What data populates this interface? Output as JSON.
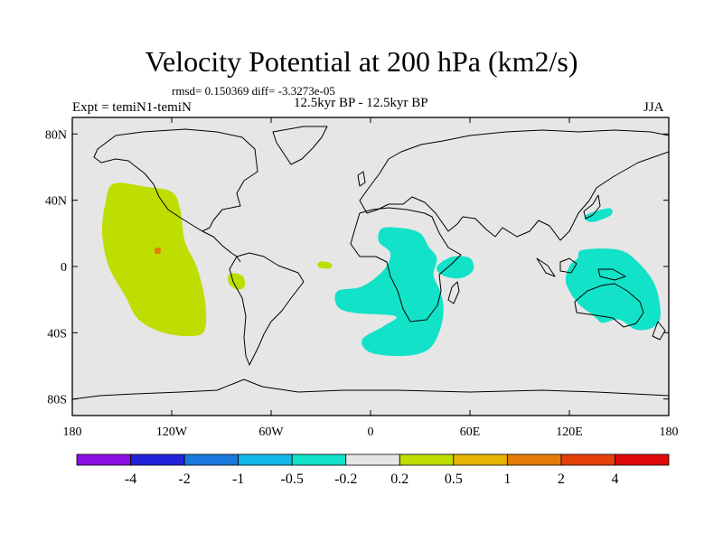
{
  "title": "Velocity Potential at 200 hPa (km2/s)",
  "stats_line": "rmsd= 0.150369 diff= -3.3273e-05",
  "left_label": "Expt = temiN1-temiN",
  "center_label": "12.5kyr BP - 12.5kyr BP",
  "right_label": "JJA",
  "lat_ticks": [
    {
      "value": 80,
      "label": "80N"
    },
    {
      "value": 40,
      "label": "40N"
    },
    {
      "value": 0,
      "label": "0"
    },
    {
      "value": -40,
      "label": "40S"
    },
    {
      "value": -80,
      "label": "80S"
    }
  ],
  "lon_ticks": [
    {
      "value": -180,
      "label": "180"
    },
    {
      "value": -120,
      "label": "120W"
    },
    {
      "value": -60,
      "label": "60W"
    },
    {
      "value": 0,
      "label": "0"
    },
    {
      "value": 60,
      "label": "60E"
    },
    {
      "value": 120,
      "label": "120E"
    },
    {
      "value": 180,
      "label": "180"
    }
  ],
  "map_extent": {
    "lon": [
      -180,
      180
    ],
    "lat": [
      -90,
      90
    ]
  },
  "colorbar": {
    "colors": [
      "#8a0fe0",
      "#2222d8",
      "#1978dc",
      "#12b8e6",
      "#11e2c8",
      "#e6e6e6",
      "#bedd00",
      "#e6b400",
      "#e47c0a",
      "#e6400a",
      "#e00a0a"
    ],
    "labels": [
      "-4",
      "-2",
      "-1",
      "-0.5",
      "-0.2",
      "0.2",
      "0.5",
      "1",
      "2",
      "4"
    ]
  },
  "colors": {
    "background": "#e6e6e6",
    "positive": "#bedd00",
    "negative": "#11e2c8",
    "peak": "#e47c0a",
    "coast": "#000000"
  },
  "chart_data": {
    "type": "heatmap",
    "title": "Velocity Potential at 200 hPa (km2/s)",
    "units": "km2/s",
    "field": "velocity potential difference at 200 hPa",
    "season": "JJA",
    "levels": [
      -4,
      -2,
      -1,
      -0.5,
      -0.2,
      0.2,
      0.5,
      1,
      2,
      4
    ],
    "regions": [
      {
        "name": "eastern-pacific-positive",
        "level": "0.5 to 1",
        "color": "#bedd00",
        "outline": [
          [
            -155,
            50
          ],
          [
            -135,
            48
          ],
          [
            -120,
            45
          ],
          [
            -115,
            35
          ],
          [
            -112,
            15
          ],
          [
            -105,
            0
          ],
          [
            -100,
            -20
          ],
          [
            -100,
            -38
          ],
          [
            -108,
            -42
          ],
          [
            -125,
            -40
          ],
          [
            -140,
            -32
          ],
          [
            -148,
            -18
          ],
          [
            -158,
            0
          ],
          [
            -162,
            20
          ],
          [
            -160,
            38
          ]
        ]
      },
      {
        "name": "eastern-pacific-peak",
        "level": "1 to 2",
        "color": "#e47c0a",
        "outline": [
          [
            -130,
            11
          ],
          [
            -127,
            11
          ],
          [
            -127,
            8
          ],
          [
            -130,
            8
          ]
        ]
      },
      {
        "name": "amazon-positive",
        "level": "0.5 to 1",
        "color": "#bedd00",
        "outline": [
          [
            -83,
            -4
          ],
          [
            -77,
            -6
          ],
          [
            -76,
            -12
          ],
          [
            -80,
            -14
          ],
          [
            -85,
            -11
          ],
          [
            -86,
            -6
          ]
        ]
      },
      {
        "name": "atlantic-positive",
        "level": "0.5 to 1",
        "color": "#bedd00",
        "outline": [
          [
            -30,
            3
          ],
          [
            -24,
            2
          ],
          [
            -24,
            -1
          ],
          [
            -30,
            -1
          ],
          [
            -32,
            1
          ]
        ]
      },
      {
        "name": "africa-south-atlantic-negative",
        "level": "-0.2 to -0.5",
        "color": "#11e2c8",
        "outline": [
          [
            7,
            23
          ],
          [
            20,
            23
          ],
          [
            30,
            20
          ],
          [
            35,
            12
          ],
          [
            40,
            5
          ],
          [
            38,
            -5
          ],
          [
            42,
            -15
          ],
          [
            44,
            -25
          ],
          [
            42,
            -38
          ],
          [
            35,
            -50
          ],
          [
            20,
            -54
          ],
          [
            0,
            -52
          ],
          [
            -5,
            -44
          ],
          [
            8,
            -36
          ],
          [
            15,
            -30
          ],
          [
            -10,
            -28
          ],
          [
            -20,
            -24
          ],
          [
            -20,
            -15
          ],
          [
            -5,
            -12
          ],
          [
            8,
            -2
          ],
          [
            12,
            8
          ],
          [
            5,
            15
          ]
        ]
      },
      {
        "name": "western-indian-negative",
        "level": "-0.2 to -0.5",
        "color": "#11e2c8",
        "outline": [
          [
            42,
            2
          ],
          [
            50,
            6
          ],
          [
            60,
            5
          ],
          [
            62,
            -2
          ],
          [
            55,
            -7
          ],
          [
            45,
            -6
          ],
          [
            40,
            -2
          ]
        ]
      },
      {
        "name": "east-asia-negative",
        "level": "-0.2 to -0.5",
        "color": "#11e2c8",
        "outline": [
          [
            130,
            31
          ],
          [
            138,
            34
          ],
          [
            145,
            35
          ],
          [
            145,
            31
          ],
          [
            135,
            27
          ],
          [
            130,
            28
          ]
        ]
      },
      {
        "name": "maritime-continent-australia-negative",
        "level": "-0.2 to -0.5",
        "color": "#11e2c8",
        "outline": [
          [
            128,
            10
          ],
          [
            150,
            10
          ],
          [
            162,
            2
          ],
          [
            172,
            -12
          ],
          [
            175,
            -30
          ],
          [
            170,
            -37
          ],
          [
            160,
            -38
          ],
          [
            150,
            -32
          ],
          [
            140,
            -34
          ],
          [
            135,
            -30
          ],
          [
            125,
            -22
          ],
          [
            118,
            -10
          ],
          [
            120,
            0
          ],
          [
            125,
            5
          ]
        ]
      }
    ]
  }
}
